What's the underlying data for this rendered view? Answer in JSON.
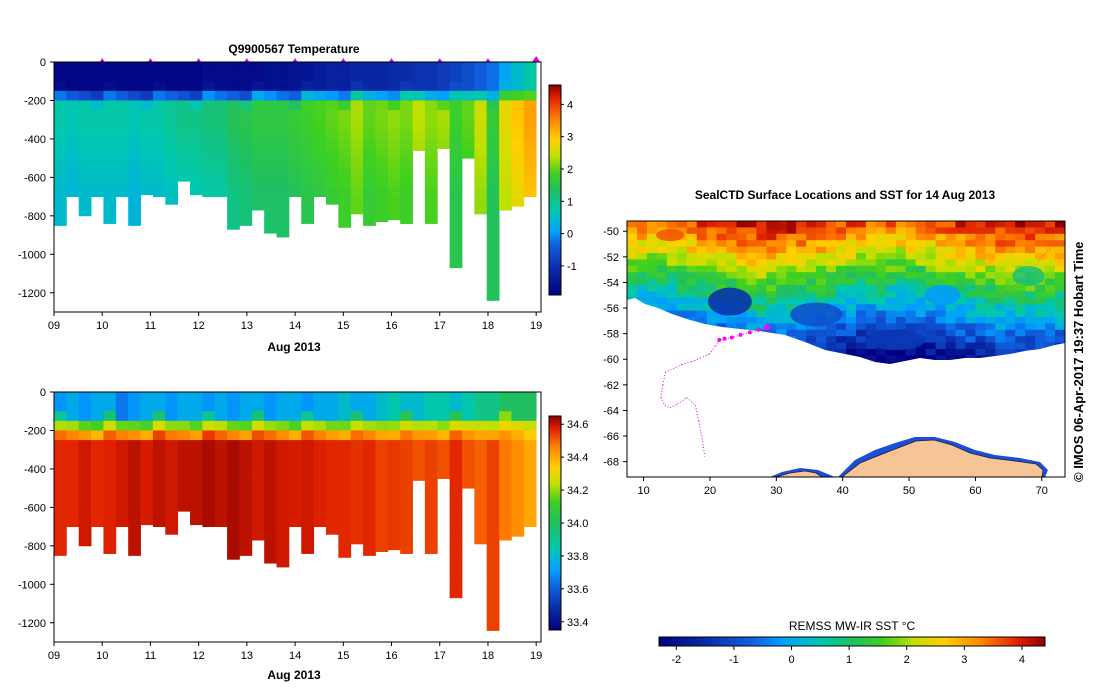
{
  "chart_data": [
    {
      "type": "heatmap",
      "title": "Q9900567  Temperature",
      "xlabel": "Aug 2013",
      "ylabel": "",
      "x_ticks": [
        "09",
        "10",
        "11",
        "12",
        "13",
        "14",
        "15",
        "16",
        "17",
        "18",
        "19"
      ],
      "x_range": [
        9,
        19.1
      ],
      "y_ticks": [
        0,
        -200,
        -400,
        -600,
        -800,
        -1000,
        -1200
      ],
      "y_range": [
        -1300,
        0
      ],
      "colorbar": {
        "ticks": [
          4,
          3,
          2,
          1,
          0,
          -1
        ],
        "range": [
          -1.9,
          4.6
        ]
      },
      "profile_markers_days": [
        10,
        11,
        12,
        13,
        14,
        15,
        16,
        17,
        18,
        19
      ],
      "profile_depth_bottom_m": [
        850,
        700,
        800,
        700,
        840,
        700,
        850,
        690,
        700,
        740,
        620,
        690,
        700,
        700,
        870,
        850,
        770,
        890,
        910,
        700,
        840,
        700,
        740,
        860,
        790,
        850,
        830,
        820,
        840,
        460,
        840,
        450,
        1070,
        500,
        790,
        1240,
        770,
        750,
        700
      ],
      "profile_surface_value": [
        -1.8,
        -1.8,
        -1.8,
        -1.8,
        -1.8,
        -1.8,
        -1.8,
        -1.8,
        -1.8,
        -1.8,
        -1.8,
        -1.8,
        -1.7,
        -1.7,
        -1.7,
        -1.7,
        -1.7,
        -1.6,
        -1.6,
        -1.5,
        -1.5,
        -1.4,
        -1.3,
        -1.3,
        -1.2,
        -1.2,
        -1.2,
        -1.1,
        -1.1,
        -1.0,
        -1.0,
        -0.9,
        -0.8,
        -0.6,
        -0.4,
        -0.2,
        0.3,
        0.6,
        0.9
      ],
      "profile_deep_value": [
        0.6,
        0.5,
        0.6,
        0.6,
        0.6,
        0.6,
        0.5,
        0.6,
        0.6,
        0.7,
        0.8,
        0.8,
        0.9,
        0.9,
        1.1,
        1.2,
        1.3,
        1.3,
        1.3,
        1.4,
        1.5,
        1.6,
        1.7,
        1.8,
        2.0,
        1.7,
        1.8,
        1.9,
        1.8,
        2.1,
        1.9,
        2.0,
        1.5,
        1.7,
        2.2,
        1.4,
        2.4,
        2.7,
        3.0
      ]
    },
    {
      "type": "heatmap",
      "title": "",
      "xlabel": "Aug 2013",
      "ylabel": "",
      "x_ticks": [
        "09",
        "10",
        "11",
        "12",
        "13",
        "14",
        "15",
        "16",
        "17",
        "18",
        "19"
      ],
      "x_range": [
        9,
        19.1
      ],
      "y_ticks": [
        0,
        -200,
        -400,
        -600,
        -800,
        -1000,
        -1200
      ],
      "y_range": [
        -1300,
        0
      ],
      "colorbar": {
        "ticks": [
          34.6,
          34.4,
          34.2,
          34.0,
          33.8,
          33.6,
          33.4
        ],
        "range": [
          33.35,
          34.65
        ]
      },
      "profile_surface_value": [
        33.75,
        33.8,
        33.75,
        33.8,
        33.8,
        33.7,
        33.75,
        33.8,
        33.8,
        33.75,
        33.8,
        33.8,
        33.75,
        33.8,
        33.75,
        33.8,
        33.8,
        33.75,
        33.8,
        33.8,
        33.75,
        33.8,
        33.8,
        33.85,
        33.8,
        33.8,
        33.85,
        33.9,
        33.85,
        33.85,
        33.9,
        33.9,
        33.85,
        33.9,
        33.95,
        33.95,
        34.0,
        34.0,
        34.0
      ],
      "profile_deep_value": [
        34.55,
        34.55,
        34.58,
        34.55,
        34.56,
        34.58,
        34.6,
        34.57,
        34.6,
        34.58,
        34.6,
        34.6,
        34.62,
        34.6,
        34.62,
        34.6,
        34.58,
        34.6,
        34.58,
        34.57,
        34.58,
        34.56,
        34.55,
        34.55,
        34.54,
        34.55,
        34.52,
        34.53,
        34.52,
        34.5,
        34.52,
        34.5,
        34.55,
        34.5,
        34.48,
        34.52,
        34.45,
        34.42,
        34.38
      ]
    },
    {
      "type": "heatmap",
      "title": "SealCTD Surface Locations and SST for 14 Aug 2013",
      "xlabel": "",
      "ylabel": "",
      "x_ticks": [
        "10",
        "20",
        "30",
        "40",
        "50",
        "60",
        "70"
      ],
      "x_range": [
        7.5,
        73.5
      ],
      "y_ticks": [
        "-50",
        "-52",
        "-54",
        "-56",
        "-58",
        "-60",
        "-62",
        "-64",
        "-66",
        "-68"
      ],
      "y_range": [
        -69.2,
        -49.2
      ],
      "colorbar": {
        "label": "REMSS MW-IR SST °C",
        "ticks": [
          "-2",
          "-1",
          "0",
          "1",
          "2",
          "3",
          "4"
        ],
        "range": [
          -2.3,
          4.4
        ]
      },
      "track_lon": [
        28.6,
        27.3,
        26.0,
        24.6,
        23.3,
        22.2,
        21.4,
        20.8,
        19.9,
        18.6,
        17.2,
        15.8,
        14.6,
        13.3,
        12.9,
        12.6,
        13.2,
        14.0,
        15.1,
        16.5,
        17.8,
        18.3,
        18.9,
        19.2
      ],
      "track_lat": [
        -57.5,
        -57.7,
        -57.9,
        -58.1,
        -58.3,
        -58.4,
        -58.5,
        -59.0,
        -59.6,
        -59.9,
        -60.2,
        -60.4,
        -60.7,
        -61.0,
        -62.0,
        -63.0,
        -63.6,
        -63.8,
        -63.5,
        -63.0,
        -63.6,
        -64.8,
        -66.4,
        -67.6
      ]
    }
  ],
  "watermark": "© IMOS 06-Apr-2017 19:37 Hobart Time"
}
